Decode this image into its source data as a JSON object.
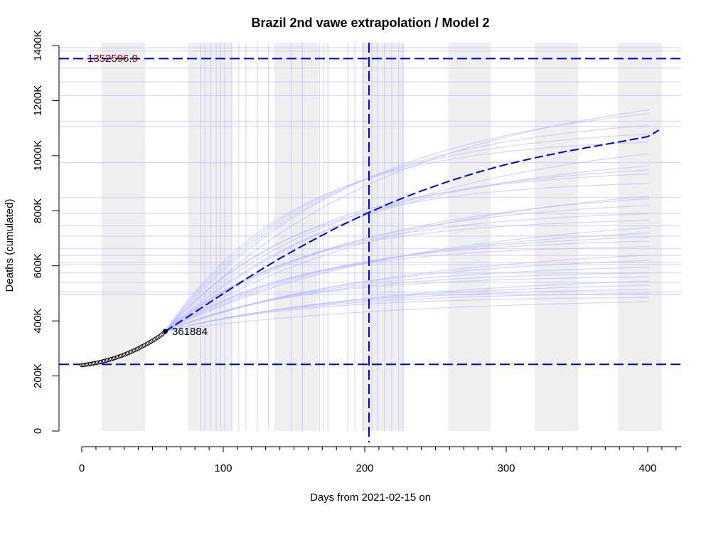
{
  "chart_data": {
    "type": "line",
    "title": "Brazil 2nd vawe extrapolation / Model 2",
    "xlabel": "Days from 2021-02-15 on",
    "ylabel": "Deaths (cumulated)",
    "xlim": [
      0,
      420
    ],
    "ylim": [
      0,
      1400000
    ],
    "x_ticks": [
      0,
      100,
      200,
      300,
      400
    ],
    "x_tick_labels": [
      "0",
      "100",
      "200",
      "300",
      "400"
    ],
    "y_ticks": [
      0,
      200000,
      400000,
      600000,
      800000,
      1000000,
      1200000,
      1400000
    ],
    "y_tick_labels": [
      "0",
      "200K",
      "400K",
      "600K",
      "800K",
      "1000K",
      "1200K",
      "1400K"
    ],
    "grid": false,
    "colors": {
      "main_line": "#0000cc",
      "ensemble": "#b8b8ff",
      "shade": "#efefef",
      "observed": "#000000",
      "annotation_red": "#7a0000"
    },
    "shaded_bands_x": [
      [
        14,
        45
      ],
      [
        75,
        106
      ],
      [
        136,
        167
      ],
      [
        198,
        228
      ],
      [
        259,
        289
      ],
      [
        320,
        351
      ],
      [
        379,
        410
      ]
    ],
    "reference_lines": {
      "h_upper": 1352596.9,
      "h_lower": 242000,
      "v_peak": 203
    },
    "annotations": {
      "upper_value": "1352596.9",
      "last_observed": "361884"
    },
    "observed": {
      "name": "observed",
      "x": [
        0,
        4,
        8,
        12,
        16,
        20,
        24,
        28,
        32,
        36,
        40,
        44,
        48,
        52,
        56,
        59
      ],
      "y": [
        239000,
        241900,
        245300,
        249400,
        254200,
        259800,
        266200,
        273400,
        281400,
        290300,
        300000,
        310600,
        322000,
        334300,
        347500,
        361884
      ]
    },
    "model_line": {
      "name": "model 2",
      "x": [
        59,
        80,
        100,
        120,
        140,
        160,
        180,
        200,
        220,
        240,
        260,
        280,
        300,
        320,
        340,
        360,
        380,
        400,
        408
      ],
      "y": [
        361884,
        432000,
        499000,
        565000,
        627000,
        684000,
        738000,
        787000,
        832000,
        872000,
        908000,
        940000,
        968000,
        992000,
        1013000,
        1032000,
        1050000,
        1069000,
        1093000
      ]
    },
    "ensemble_endpoints": [
      1170000,
      1155000,
      1112000,
      1080000,
      1050000,
      1010000,
      965000,
      950000,
      935000,
      900000,
      855000,
      845000,
      820000,
      790000,
      765000,
      740000,
      720000,
      705000,
      690000,
      670000,
      640000,
      620000,
      595000,
      575000,
      560000,
      545000,
      530000,
      515000,
      500000,
      485000,
      470000
    ],
    "ensemble_hlines": [
      1392000,
      1380000,
      1318000,
      1268000,
      1218000,
      1125000,
      1106000,
      975000,
      848000,
      790000,
      745000,
      708000,
      662000,
      638000,
      612000,
      604000,
      574000,
      540000,
      505000,
      495000
    ],
    "ensemble_vlines": [
      84,
      87,
      91,
      95,
      98,
      101,
      106,
      111,
      116,
      124,
      132,
      148,
      156,
      168,
      171,
      174,
      188,
      193,
      199,
      205,
      209,
      214,
      219,
      224,
      227
    ]
  }
}
